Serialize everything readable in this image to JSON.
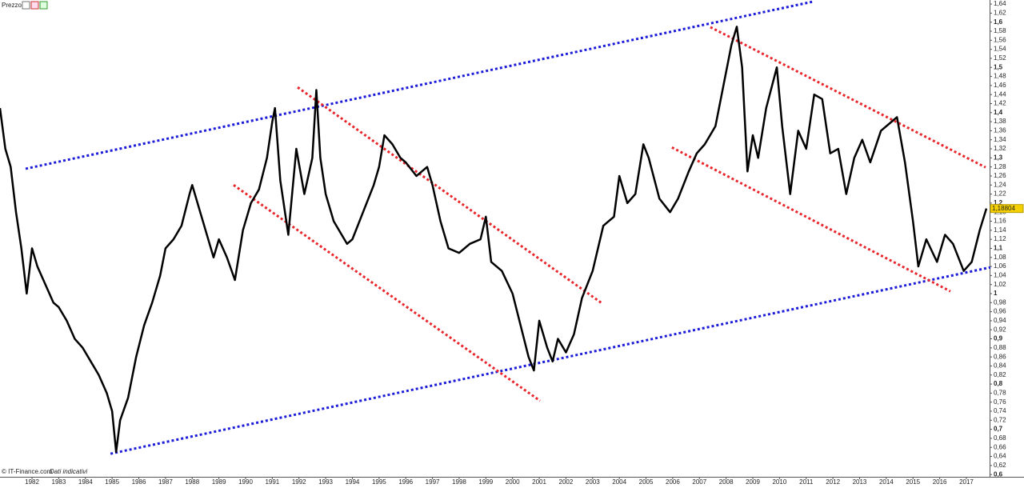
{
  "chart_data": {
    "type": "line",
    "title": "Prezzo",
    "source": "© IT-Finance.com",
    "note": "Dati indicativi",
    "color": "#000000",
    "xlim": [
      1980.8,
      2017.87
    ],
    "xticks": [
      1982,
      1983,
      1984,
      1985,
      1986,
      1987,
      1988,
      1989,
      1990,
      1991,
      1992,
      1993,
      1994,
      1995,
      1996,
      1997,
      1998,
      1999,
      2000,
      2001,
      2002,
      2003,
      2004,
      2005,
      2006,
      2007,
      2008,
      2009,
      2010,
      2011,
      2012,
      2013,
      2014,
      2015,
      2016,
      2017
    ],
    "ylim": [
      0.595,
      1.649
    ],
    "yticks": [
      {
        "value": 0.6,
        "label": "0,6"
      },
      {
        "value": 0.62,
        "label": "0,62"
      },
      {
        "value": 0.64,
        "label": "0,64"
      },
      {
        "value": 0.66,
        "label": "0,66"
      },
      {
        "value": 0.68,
        "label": "0,68"
      },
      {
        "value": 0.7,
        "label": "0,7"
      },
      {
        "value": 0.72,
        "label": "0,72"
      },
      {
        "value": 0.74,
        "label": "0,74"
      },
      {
        "value": 0.76,
        "label": "0,76"
      },
      {
        "value": 0.78,
        "label": "0,78"
      },
      {
        "value": 0.8,
        "label": "0,8"
      },
      {
        "value": 0.82,
        "label": "0,82"
      },
      {
        "value": 0.84,
        "label": "0,84"
      },
      {
        "value": 0.86,
        "label": "0,86"
      },
      {
        "value": 0.88,
        "label": "0,88"
      },
      {
        "value": 0.9,
        "label": "0,9"
      },
      {
        "value": 0.92,
        "label": "0,92"
      },
      {
        "value": 0.94,
        "label": "0,94"
      },
      {
        "value": 0.96,
        "label": "0,96"
      },
      {
        "value": 0.98,
        "label": "0,98"
      },
      1,
      {
        "value": 1.02,
        "label": "1,02"
      },
      {
        "value": 1.04,
        "label": "1,04"
      },
      {
        "value": 1.06,
        "label": "1,06"
      },
      {
        "value": 1.08,
        "label": "1,08"
      },
      {
        "value": 1.1,
        "label": "1,1"
      },
      {
        "value": 1.12,
        "label": "1,12"
      },
      {
        "value": 1.14,
        "label": "1,14"
      },
      {
        "value": 1.16,
        "label": "1,16"
      },
      {
        "value": 1.18,
        "label": "1,18"
      },
      {
        "value": 1.2,
        "label": "1,2"
      },
      {
        "value": 1.22,
        "label": "1,22"
      },
      {
        "value": 1.24,
        "label": "1,24"
      },
      {
        "value": 1.26,
        "label": "1,26"
      },
      {
        "value": 1.28,
        "label": "1,28"
      },
      {
        "value": 1.3,
        "label": "1,3"
      },
      {
        "value": 1.32,
        "label": "1,32"
      },
      {
        "value": 1.34,
        "label": "1,34"
      },
      {
        "value": 1.36,
        "label": "1,36"
      },
      {
        "value": 1.38,
        "label": "1,38"
      },
      {
        "value": 1.4,
        "label": "1,4"
      },
      {
        "value": 1.42,
        "label": "1,42"
      },
      {
        "value": 1.44,
        "label": "1,44"
      },
      {
        "value": 1.46,
        "label": "1,46"
      },
      {
        "value": 1.48,
        "label": "1,48"
      },
      {
        "value": 1.5,
        "label": "1,5"
      },
      {
        "value": 1.52,
        "label": "1,52"
      },
      {
        "value": 1.54,
        "label": "1,54"
      },
      {
        "value": 1.56,
        "label": "1,56"
      },
      {
        "value": 1.58,
        "label": "1,58"
      },
      {
        "value": 1.6,
        "label": "1,6"
      },
      {
        "value": 1.62,
        "label": "1,62"
      },
      {
        "value": 1.64,
        "label": "1,64"
      }
    ],
    "x": [
      1980.8,
      1981.0,
      1981.2,
      1981.4,
      1981.6,
      1981.8,
      1982.0,
      1982.2,
      1982.5,
      1982.8,
      1983.0,
      1983.3,
      1983.6,
      1983.9,
      1984.2,
      1984.5,
      1984.8,
      1985.0,
      1985.15,
      1985.3,
      1985.6,
      1985.9,
      1986.2,
      1986.5,
      1986.8,
      1987.0,
      1987.3,
      1987.6,
      1987.9,
      1988.0,
      1988.2,
      1988.5,
      1988.8,
      1989.0,
      1989.3,
      1989.6,
      1989.9,
      1990.2,
      1990.5,
      1990.8,
      1991.0,
      1991.1,
      1991.3,
      1991.6,
      1991.9,
      1992.2,
      1992.5,
      1992.65,
      1992.8,
      1993.0,
      1993.3,
      1993.6,
      1993.8,
      1994.0,
      1994.4,
      1994.8,
      1995.0,
      1995.2,
      1995.5,
      1995.8,
      1996.0,
      1996.4,
      1996.8,
      1997.0,
      1997.3,
      1997.6,
      1998.0,
      1998.4,
      1998.8,
      1999.0,
      1999.2,
      1999.6,
      2000.0,
      2000.3,
      2000.6,
      2000.8,
      2001.0,
      2001.3,
      2001.5,
      2001.7,
      2002.0,
      2002.3,
      2002.6,
      2003.0,
      2003.4,
      2003.8,
      2004.0,
      2004.3,
      2004.6,
      2004.9,
      2005.1,
      2005.5,
      2005.9,
      2006.2,
      2006.6,
      2006.9,
      2007.2,
      2007.6,
      2007.9,
      2008.2,
      2008.4,
      2008.6,
      2008.8,
      2009.0,
      2009.2,
      2009.5,
      2009.9,
      2010.1,
      2010.4,
      2010.7,
      2011.0,
      2011.3,
      2011.6,
      2011.9,
      2012.2,
      2012.5,
      2012.8,
      2013.1,
      2013.4,
      2013.8,
      2014.2,
      2014.4,
      2014.7,
      2015.0,
      2015.2,
      2015.5,
      2015.9,
      2016.2,
      2016.5,
      2016.9,
      2017.2,
      2017.5,
      2017.75
    ],
    "values": [
      1.41,
      1.32,
      1.28,
      1.18,
      1.1,
      1.0,
      1.1,
      1.06,
      1.02,
      0.98,
      0.97,
      0.94,
      0.9,
      0.88,
      0.85,
      0.82,
      0.78,
      0.74,
      0.65,
      0.72,
      0.77,
      0.86,
      0.93,
      0.98,
      1.04,
      1.1,
      1.12,
      1.15,
      1.22,
      1.24,
      1.2,
      1.14,
      1.08,
      1.12,
      1.08,
      1.03,
      1.14,
      1.2,
      1.23,
      1.3,
      1.38,
      1.41,
      1.25,
      1.13,
      1.32,
      1.22,
      1.3,
      1.45,
      1.3,
      1.22,
      1.16,
      1.13,
      1.11,
      1.12,
      1.18,
      1.24,
      1.28,
      1.35,
      1.33,
      1.3,
      1.29,
      1.26,
      1.28,
      1.24,
      1.16,
      1.1,
      1.09,
      1.11,
      1.12,
      1.17,
      1.07,
      1.05,
      1.0,
      0.93,
      0.86,
      0.83,
      0.94,
      0.88,
      0.85,
      0.9,
      0.87,
      0.91,
      0.99,
      1.05,
      1.15,
      1.17,
      1.26,
      1.2,
      1.22,
      1.33,
      1.3,
      1.21,
      1.18,
      1.21,
      1.27,
      1.31,
      1.33,
      1.37,
      1.46,
      1.55,
      1.59,
      1.5,
      1.27,
      1.35,
      1.3,
      1.41,
      1.5,
      1.37,
      1.22,
      1.36,
      1.32,
      1.44,
      1.43,
      1.31,
      1.32,
      1.22,
      1.3,
      1.34,
      1.29,
      1.36,
      1.38,
      1.39,
      1.29,
      1.16,
      1.06,
      1.12,
      1.07,
      1.13,
      1.11,
      1.05,
      1.07,
      1.14,
      1.18804
    ],
    "current_price": {
      "value": 1.18804,
      "label": "1,18804"
    },
    "trendlines": [
      {
        "color": "#1c1cd8",
        "points": [
          [
            1981.76,
            1.276
          ],
          [
            2011.22,
            1.645
          ]
        ]
      },
      {
        "color": "#1c1cd8",
        "points": [
          [
            1984.94,
            0.646
          ],
          [
            2017.9,
            1.058
          ]
        ]
      },
      {
        "color": "#e8262b",
        "points": [
          [
            1991.95,
            1.456
          ],
          [
            2003.34,
            0.979
          ]
        ]
      },
      {
        "color": "#e8262b",
        "points": [
          [
            1989.55,
            1.24
          ],
          [
            2001.03,
            0.763
          ]
        ]
      },
      {
        "color": "#e8262b",
        "points": [
          [
            2007.41,
            1.589
          ],
          [
            2017.72,
            1.279
          ]
        ]
      },
      {
        "color": "#e8262b",
        "points": [
          [
            2005.97,
            1.323
          ],
          [
            2016.4,
            1.005
          ]
        ]
      }
    ]
  }
}
